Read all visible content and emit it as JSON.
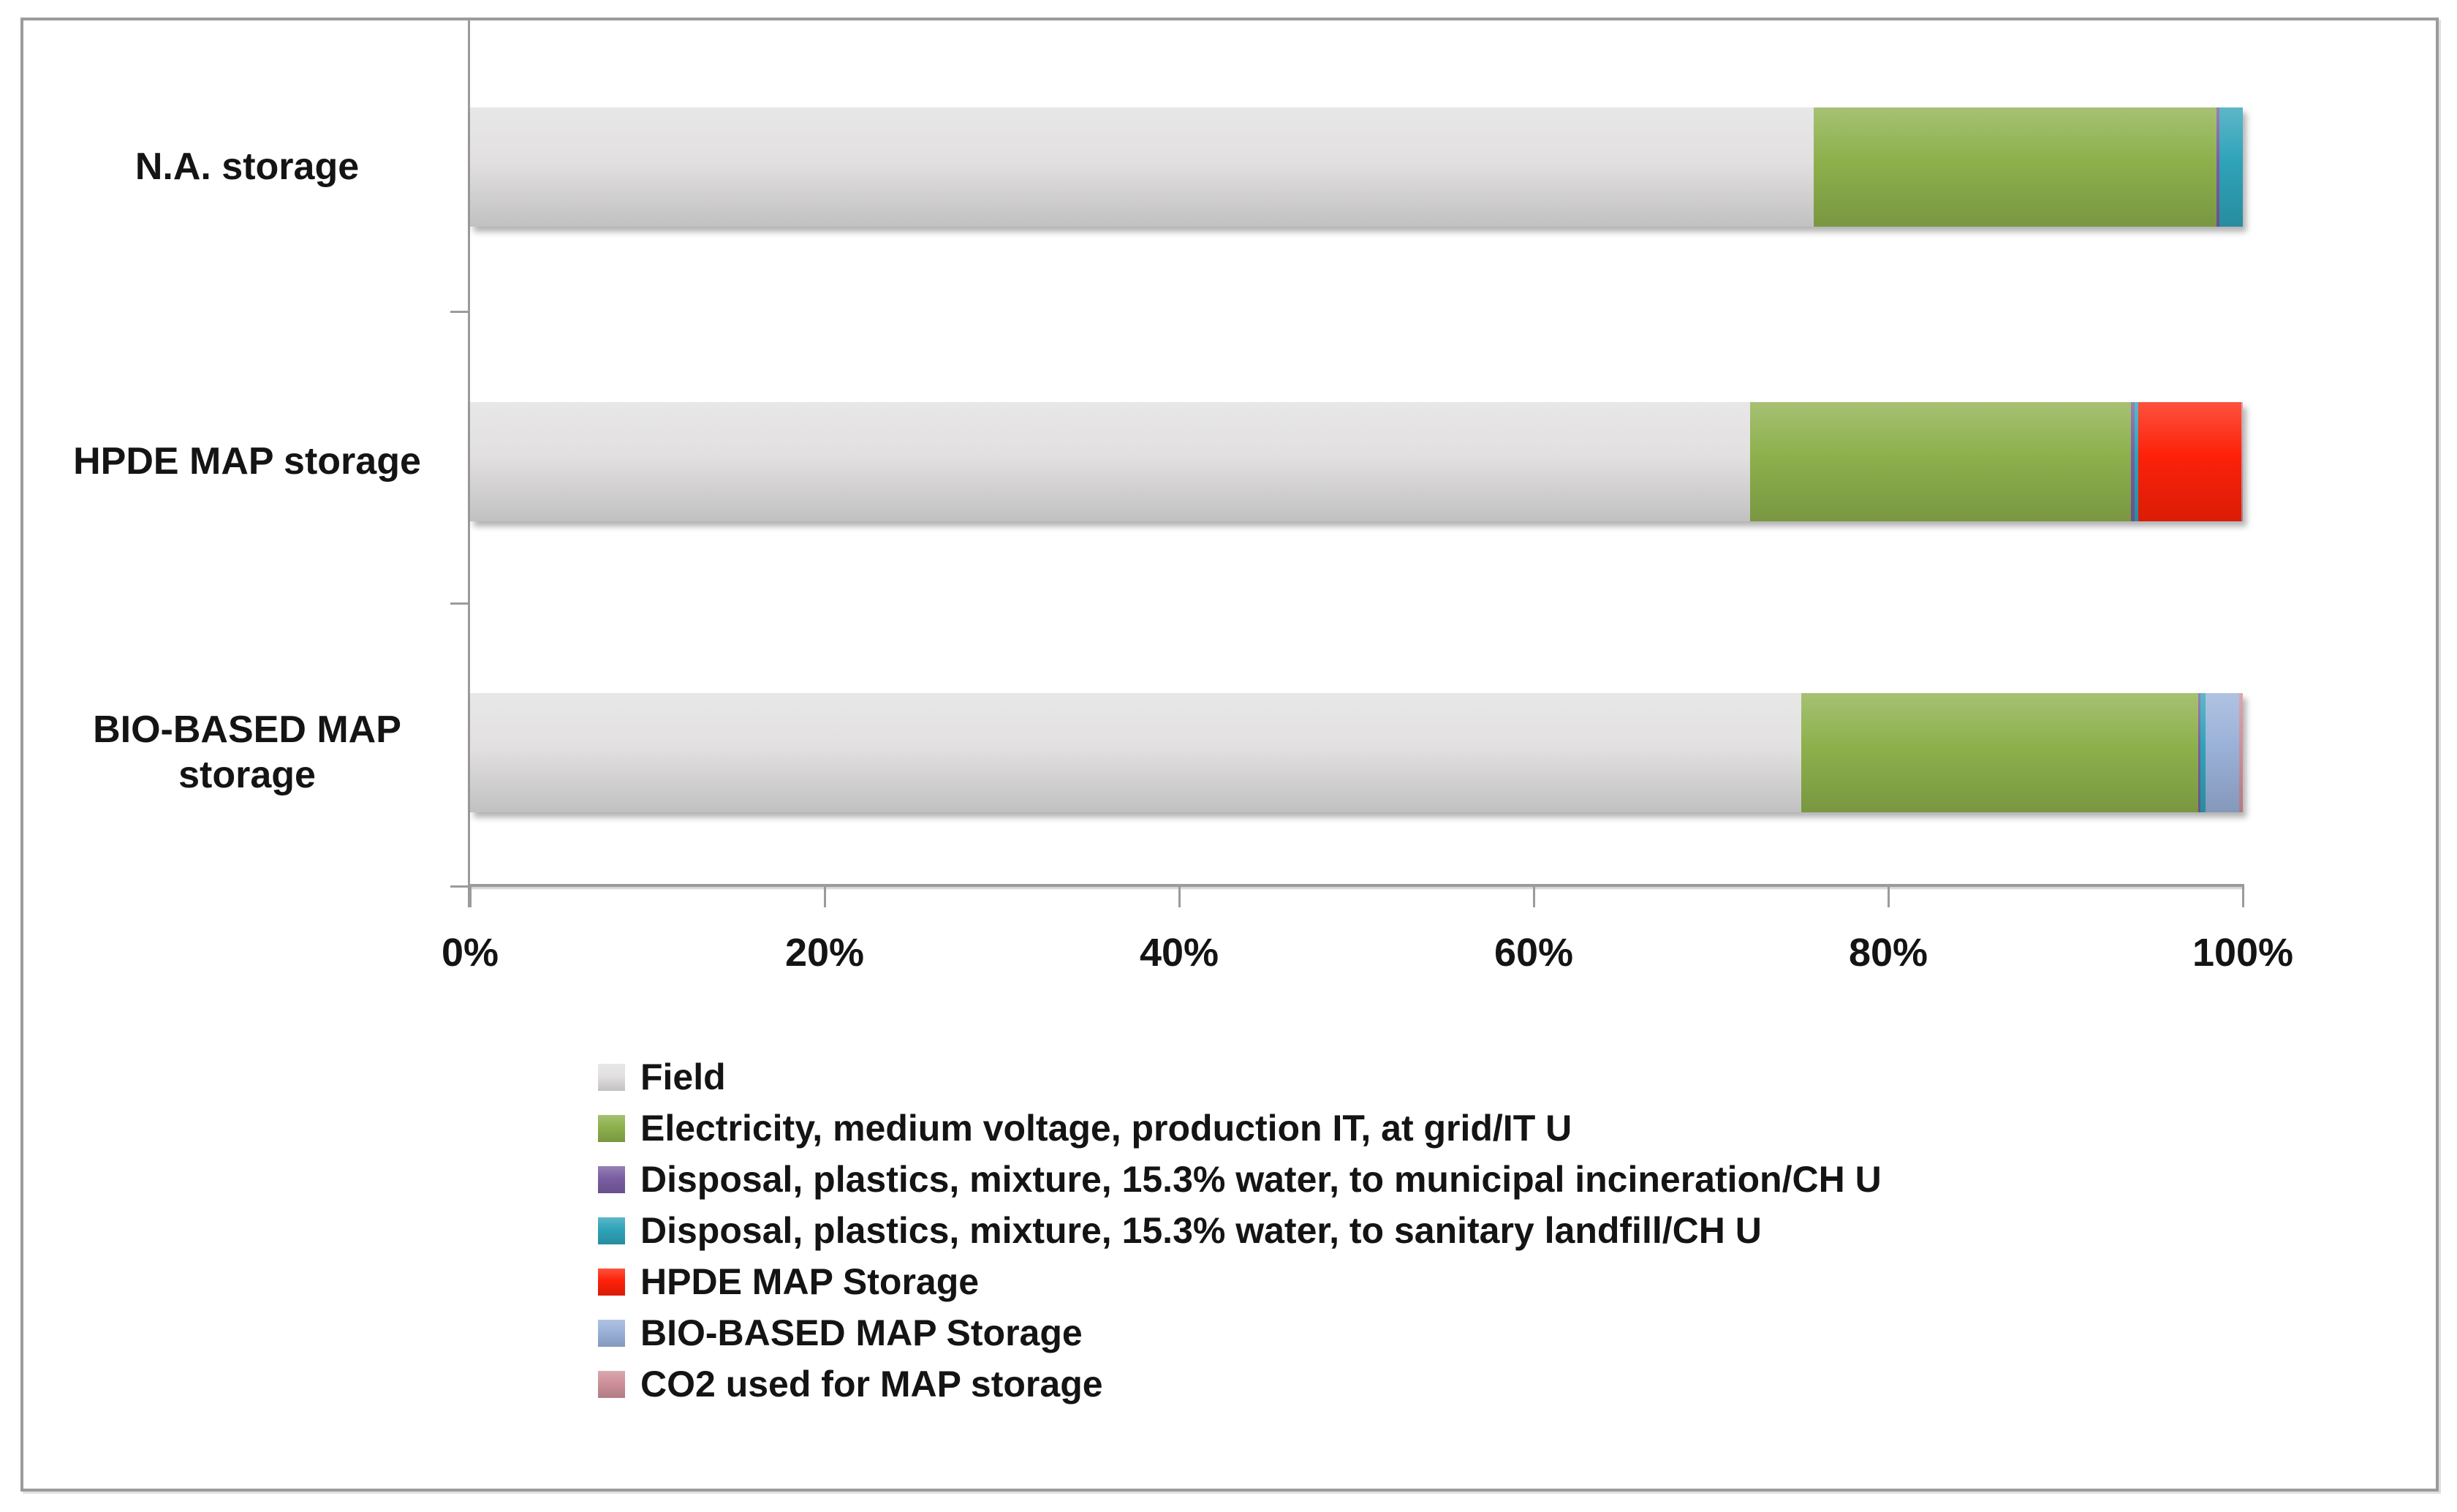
{
  "chart_data": {
    "type": "bar",
    "orientation": "horizontal",
    "stacked": true,
    "unit": "percent",
    "title": "",
    "categories": [
      "N.A. storage",
      "HPDE MAP storage",
      "BIO-BASED MAP storage"
    ],
    "series": [
      {
        "name": "Field",
        "color": "#E2E0E1",
        "values": [
          75.8,
          72.2,
          75.1
        ]
      },
      {
        "name": "Electricity, medium voltage, production IT, at grid/IT U",
        "color": "#8DB04C",
        "values": [
          22.7,
          21.5,
          22.4
        ]
      },
      {
        "name": "Disposal, plastics, mixture, 15.3% water, to municipal incineration/CH U",
        "color": "#7A5DA2",
        "values": [
          0.2,
          0.2,
          0.1
        ]
      },
      {
        "name": "Disposal, plastics, mixture, 15.3% water, to sanitary landfill/CH U",
        "color": "#2FA3B9",
        "values": [
          1.3,
          0.2,
          0.3
        ]
      },
      {
        "name": "HPDE MAP Storage",
        "color": "#FD2108",
        "values": [
          0,
          5.8,
          0
        ]
      },
      {
        "name": "BIO-BASED MAP Storage",
        "color": "#9AB1D8",
        "values": [
          0,
          0,
          1.9
        ]
      },
      {
        "name": "CO2 used for MAP storage",
        "color": "#CE9099",
        "values": [
          0,
          0.1,
          0.2
        ]
      }
    ],
    "x_axis": {
      "min": 0,
      "max": 100,
      "ticks": [
        "0%",
        "20%",
        "40%",
        "60%",
        "80%",
        "100%"
      ]
    },
    "legend_position": "bottom",
    "grid": false
  },
  "style": {
    "axis_color": "#9B9B9B",
    "border_color": "#9B9B9B",
    "text_color": "#141414",
    "background": "#FFFFFF"
  }
}
